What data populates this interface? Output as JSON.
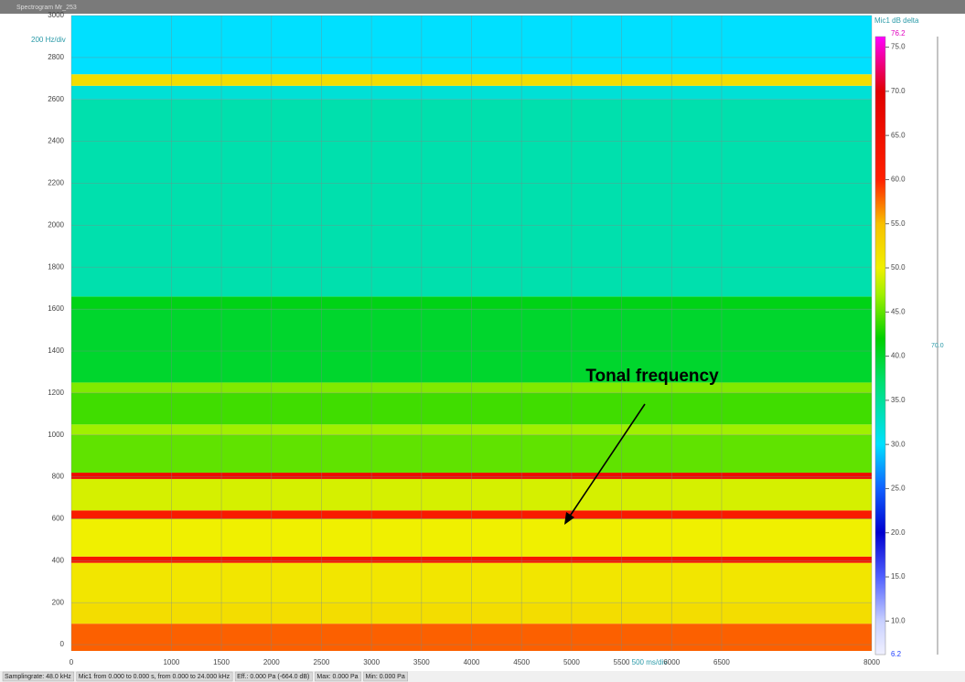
{
  "title_bar": "Spectrogram Mr_253",
  "status_bar": [
    "Samplingrate: 48.0 kHz",
    "Mic1 from 0.000 to 0.000 s, from 0.000 to 24.000 kHz",
    "Eff.: 0.000 Pa (-664.0 dB)",
    "Max: 0.000 Pa",
    "Min: 0.000 Pa"
  ],
  "chart_data": {
    "type": "spectrogram",
    "y_unit": "200 Hz/div",
    "x_unit": "500 ms/div",
    "colorbar_title": "Mic1 dB  delta",
    "cursor_label": "70.0",
    "annotation": "Tonal frequency",
    "xlim": [
      0,
      8000
    ],
    "xticks": [
      0,
      1000,
      1500,
      2000,
      2500,
      3000,
      3500,
      4000,
      4500,
      5000,
      5500,
      6000,
      6500,
      8000
    ],
    "ylim": [
      -30,
      3000
    ],
    "yticks": [
      0,
      200,
      400,
      600,
      800,
      1000,
      1200,
      1400,
      1600,
      1800,
      2000,
      2200,
      2400,
      2600,
      2800,
      3000
    ],
    "grid": true,
    "clim": [
      6.2,
      76.2
    ],
    "cticks": [
      {
        "value": 10,
        "label": "10.0"
      },
      {
        "value": 15,
        "label": "15.0"
      },
      {
        "value": 20,
        "label": "20.0"
      },
      {
        "value": 25,
        "label": "25.0"
      },
      {
        "value": 30,
        "label": "30.0"
      },
      {
        "value": 35,
        "label": "35.0"
      },
      {
        "value": 40,
        "label": "40.0"
      },
      {
        "value": 45,
        "label": "45.0"
      },
      {
        "value": 50,
        "label": "50.0"
      },
      {
        "value": 55,
        "label": "55.0"
      },
      {
        "value": 60,
        "label": "60.0"
      },
      {
        "value": 65,
        "label": "65.0"
      },
      {
        "value": 70,
        "label": "70.0"
      },
      {
        "value": 75,
        "label": "75.0"
      }
    ],
    "colormap": [
      {
        "value": 6.2,
        "color": "#f0f0ff"
      },
      {
        "value": 10,
        "color": "#c8d0ff"
      },
      {
        "value": 15,
        "color": "#5060ff"
      },
      {
        "value": 20,
        "color": "#0000d0"
      },
      {
        "value": 25,
        "color": "#1060ff"
      },
      {
        "value": 30,
        "color": "#00e0ff"
      },
      {
        "value": 37,
        "color": "#00e070"
      },
      {
        "value": 42,
        "color": "#00d000"
      },
      {
        "value": 47,
        "color": "#a0f000"
      },
      {
        "value": 50,
        "color": "#f0f000"
      },
      {
        "value": 55,
        "color": "#f8c000"
      },
      {
        "value": 60,
        "color": "#ff2000"
      },
      {
        "value": 70,
        "color": "#e00000"
      },
      {
        "value": 76.2,
        "color": "#ff00ff"
      }
    ],
    "bands": [
      {
        "from": -30,
        "to": 100,
        "level": 58
      },
      {
        "from": 100,
        "to": 200,
        "level": 52
      },
      {
        "from": 200,
        "to": 390,
        "level": 51
      },
      {
        "from": 390,
        "to": 420,
        "level": 63
      },
      {
        "from": 420,
        "to": 600,
        "level": 50
      },
      {
        "from": 600,
        "to": 640,
        "level": 62
      },
      {
        "from": 640,
        "to": 790,
        "level": 49
      },
      {
        "from": 790,
        "to": 820,
        "level": 66
      },
      {
        "from": 820,
        "to": 1000,
        "level": 45
      },
      {
        "from": 1000,
        "to": 1050,
        "level": 47
      },
      {
        "from": 1050,
        "to": 1200,
        "level": 44
      },
      {
        "from": 1200,
        "to": 1250,
        "level": 46
      },
      {
        "from": 1250,
        "to": 1600,
        "level": 40
      },
      {
        "from": 1600,
        "to": 1660,
        "level": 41
      },
      {
        "from": 1660,
        "to": 2600,
        "level": 34
      },
      {
        "from": 2600,
        "to": 2665,
        "level": 32
      },
      {
        "from": 2665,
        "to": 2720,
        "level": 52
      },
      {
        "from": 2720,
        "to": 3000,
        "level": 30
      }
    ]
  }
}
